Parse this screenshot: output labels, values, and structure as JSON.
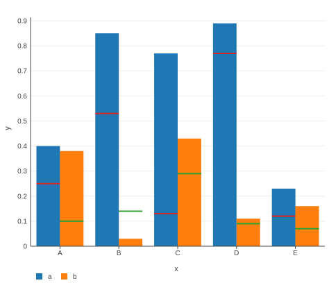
{
  "chart_data": {
    "type": "bar",
    "xlabel": "x",
    "ylabel": "y",
    "categories": [
      "A",
      "B",
      "C",
      "D",
      "E"
    ],
    "ylim": [
      0,
      0.9
    ],
    "yticks": [
      0,
      0.1,
      0.2,
      0.3,
      0.4,
      0.5,
      0.6,
      0.7,
      0.8,
      0.9
    ],
    "ytick_labels": [
      "0",
      "0.1",
      "0.2",
      "0.3",
      "0.4",
      "0.5",
      "0.6",
      "0.7",
      "0.8",
      "0.9"
    ],
    "grid": true,
    "legend": "bottom-left",
    "series": [
      {
        "name": "a",
        "color": "#1f77b4",
        "values": [
          0.4,
          0.85,
          0.77,
          0.89,
          0.23
        ]
      },
      {
        "name": "b",
        "color": "#ff7f0e",
        "values": [
          0.38,
          0.03,
          0.43,
          0.11,
          0.16
        ]
      }
    ],
    "markers": [
      {
        "series": "a",
        "color": "#d62728",
        "values": [
          0.25,
          0.53,
          0.13,
          0.77,
          0.12
        ]
      },
      {
        "series": "b",
        "color": "#2ca02c",
        "values": [
          0.1,
          0.14,
          0.29,
          0.09,
          0.07
        ]
      }
    ]
  }
}
